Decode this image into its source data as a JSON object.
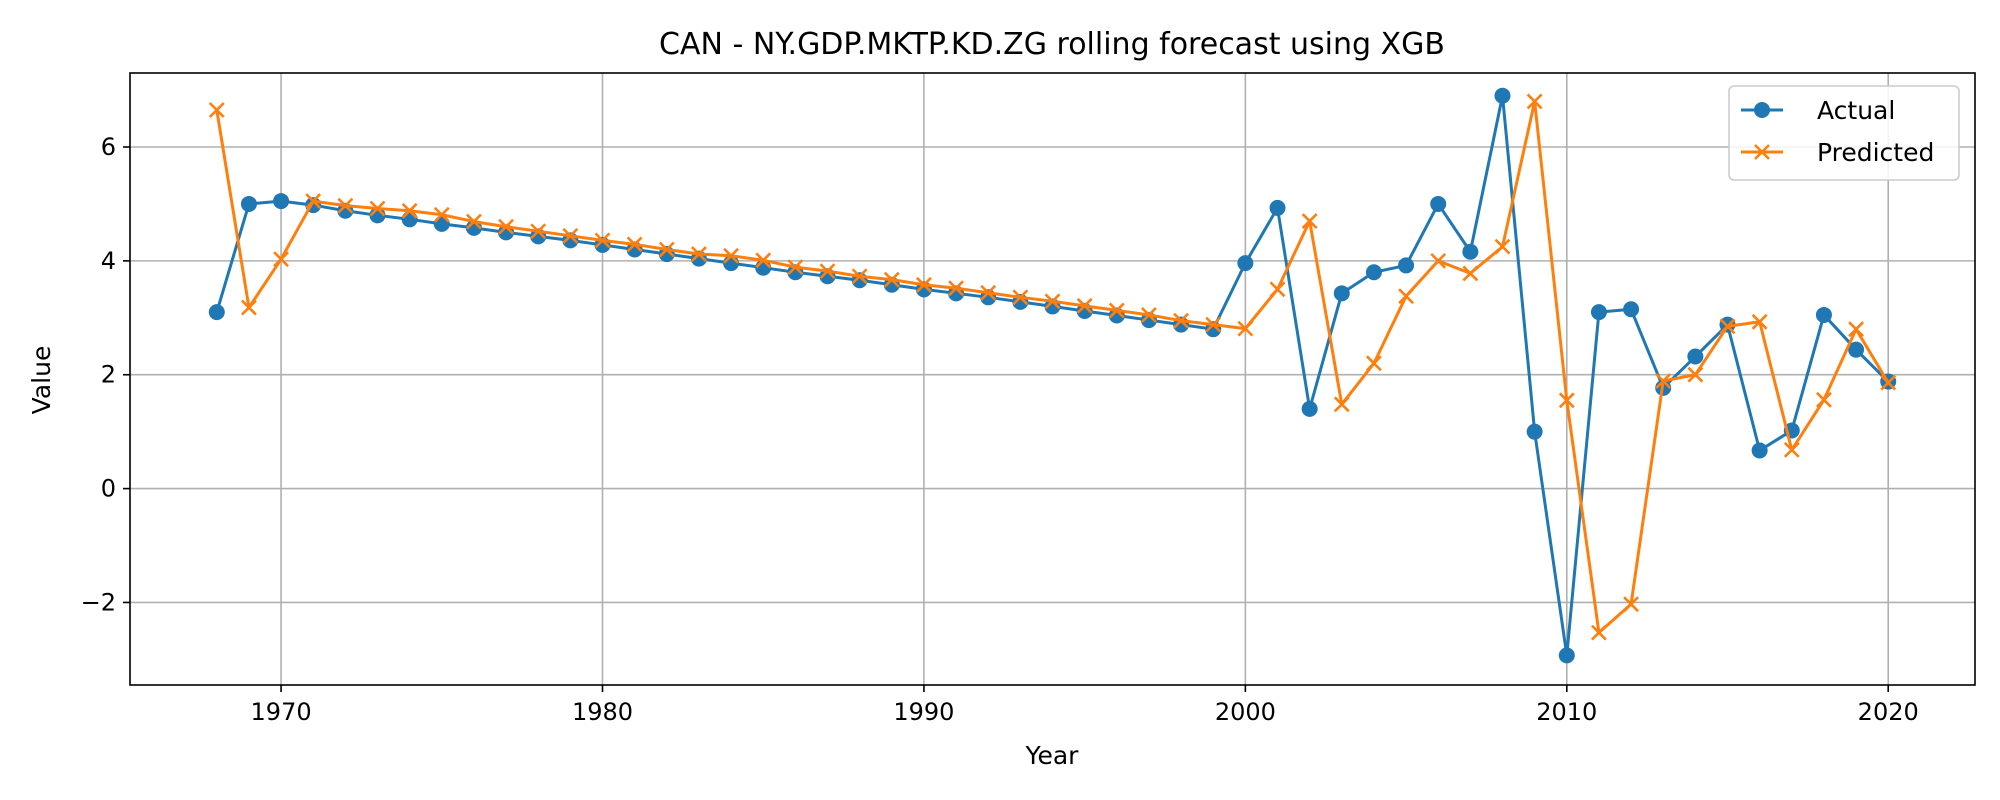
{
  "chart_data": {
    "type": "line",
    "title": "CAN - NY.GDP.MKTP.KD.ZG rolling forecast using XGB",
    "xlabel": "Year",
    "ylabel": "Value",
    "xlim": [
      1965.3,
      2022.7
    ],
    "ylim": [
      -3.45,
      7.3
    ],
    "xticks": [
      1970,
      1980,
      1990,
      2000,
      2010,
      2020
    ],
    "yticks": [
      -2,
      0,
      2,
      4,
      6
    ],
    "ytick_labels": [
      "−2",
      "0",
      "2",
      "4",
      "6"
    ],
    "grid": true,
    "legend_position": "upper-right",
    "x": [
      1968,
      1969,
      1970,
      1971,
      1972,
      1973,
      1974,
      1975,
      1976,
      1977,
      1978,
      1979,
      1980,
      1981,
      1982,
      1983,
      1984,
      1985,
      1986,
      1987,
      1988,
      1989,
      1990,
      1991,
      1992,
      1993,
      1994,
      1995,
      1996,
      1997,
      1998,
      1999,
      2000,
      2001,
      2002,
      2003,
      2004,
      2005,
      2006,
      2007,
      2008,
      2009,
      2010,
      2011,
      2012,
      2013,
      2014,
      2015,
      2016,
      2017,
      2018,
      2019,
      2020
    ],
    "series": [
      {
        "name": "Actual",
        "color": "#1f77b4",
        "marker": "circle",
        "values": [
          3.1,
          5.0,
          5.05,
          4.98,
          4.88,
          4.8,
          4.73,
          4.65,
          4.58,
          4.5,
          4.43,
          4.36,
          4.28,
          4.2,
          4.12,
          4.04,
          3.96,
          3.88,
          3.8,
          3.73,
          3.66,
          3.58,
          3.5,
          3.43,
          3.36,
          3.28,
          3.2,
          3.12,
          3.04,
          2.96,
          2.88,
          2.8,
          3.96,
          4.93,
          1.4,
          3.43,
          3.8,
          3.92,
          5.0,
          4.16,
          6.9,
          1.0,
          -2.93,
          3.1,
          3.15,
          1.77,
          2.32,
          2.88,
          0.67,
          1.02,
          3.05,
          2.44,
          1.88
        ]
      },
      {
        "name": "Predicted",
        "color": "#ff7f0e",
        "marker": "x",
        "values": [
          6.65,
          3.18,
          4.03,
          5.05,
          4.97,
          4.92,
          4.88,
          4.81,
          4.69,
          4.6,
          4.52,
          4.44,
          4.36,
          4.29,
          4.2,
          4.12,
          4.09,
          4.01,
          3.89,
          3.82,
          3.73,
          3.67,
          3.58,
          3.52,
          3.44,
          3.36,
          3.29,
          3.21,
          3.13,
          3.05,
          2.95,
          2.88,
          2.81,
          3.5,
          4.7,
          1.48,
          2.2,
          3.38,
          4.0,
          3.78,
          4.25,
          6.8,
          1.55,
          -2.53,
          -2.03,
          1.89,
          2.0,
          2.85,
          2.93,
          0.68,
          1.56,
          2.8,
          1.86
        ]
      }
    ]
  }
}
